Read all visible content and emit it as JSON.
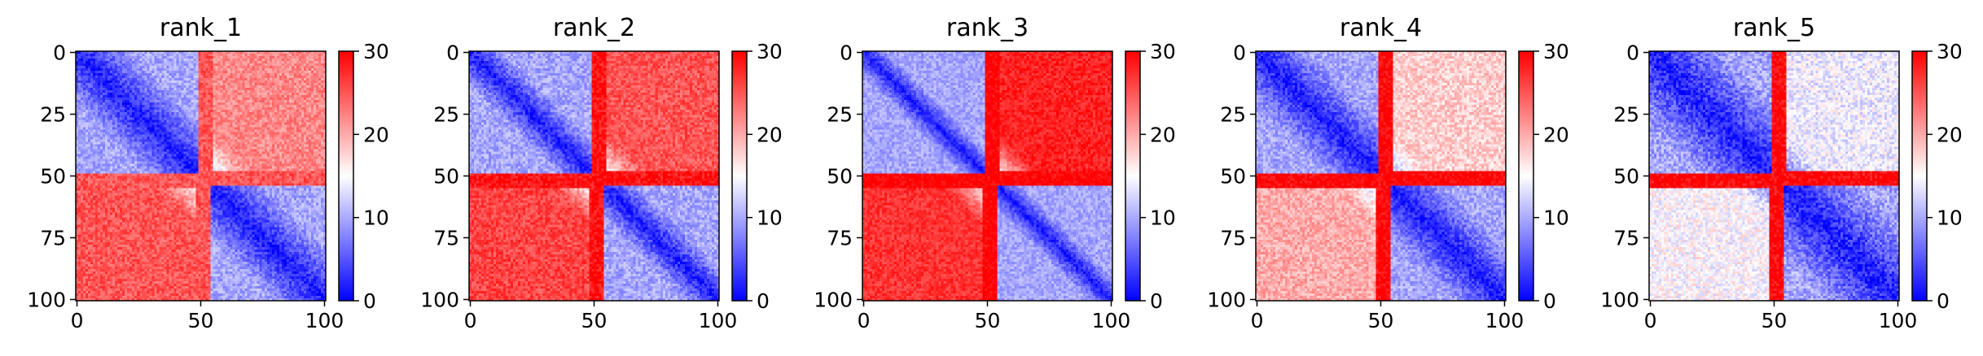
{
  "chart_data": [
    {
      "type": "heatmap",
      "title": "rank_1",
      "xlabel": "",
      "ylabel": "",
      "x_ticks": [
        0,
        50,
        100
      ],
      "y_ticks": [
        0,
        25,
        50,
        75,
        100
      ],
      "xlim": [
        0,
        101
      ],
      "ylim": [
        101,
        0
      ],
      "colorbar": {
        "vmin": 0,
        "vmax": 30,
        "ticks": [
          0,
          10,
          20,
          30
        ],
        "colormap": "bwr"
      },
      "pattern": {
        "boundary_low": 50,
        "boundary_high": 55,
        "diag_width": 22,
        "offdiag_top_right": 22,
        "offdiag_bottom_left": 25,
        "band_peak": 25,
        "noise": 2.5
      }
    },
    {
      "type": "heatmap",
      "title": "rank_2",
      "xlabel": "",
      "ylabel": "",
      "x_ticks": [
        0,
        50,
        100
      ],
      "y_ticks": [
        0,
        25,
        50,
        75,
        100
      ],
      "xlim": [
        0,
        101
      ],
      "ylim": [
        101,
        0
      ],
      "colorbar": {
        "vmin": 0,
        "vmax": 30,
        "ticks": [
          0,
          10,
          20,
          30
        ],
        "colormap": "bwr"
      },
      "pattern": {
        "boundary_low": 50,
        "boundary_high": 55,
        "diag_width": 14,
        "offdiag_top_right": 25,
        "offdiag_bottom_left": 26,
        "band_peak": 29,
        "noise": 2.5
      }
    },
    {
      "type": "heatmap",
      "title": "rank_3",
      "xlabel": "",
      "ylabel": "",
      "x_ticks": [
        0,
        50,
        100
      ],
      "y_ticks": [
        0,
        25,
        50,
        75,
        100
      ],
      "xlim": [
        0,
        101
      ],
      "ylim": [
        101,
        0
      ],
      "colorbar": {
        "vmin": 0,
        "vmax": 30,
        "ticks": [
          0,
          10,
          20,
          30
        ],
        "colormap": "bwr"
      },
      "pattern": {
        "boundary_low": 50,
        "boundary_high": 55,
        "diag_width": 10,
        "offdiag_top_right": 28,
        "offdiag_bottom_left": 27,
        "band_peak": 30,
        "noise": 2.0
      }
    },
    {
      "type": "heatmap",
      "title": "rank_4",
      "xlabel": "",
      "ylabel": "",
      "x_ticks": [
        0,
        50,
        100
      ],
      "y_ticks": [
        0,
        25,
        50,
        75,
        100
      ],
      "xlim": [
        0,
        101
      ],
      "ylim": [
        101,
        0
      ],
      "colorbar": {
        "vmin": 0,
        "vmax": 30,
        "ticks": [
          0,
          10,
          20,
          30
        ],
        "colormap": "bwr"
      },
      "pattern": {
        "boundary_low": 50,
        "boundary_high": 55,
        "diag_width": 22,
        "offdiag_top_right": 18,
        "offdiag_bottom_left": 20,
        "band_peak": 30,
        "noise": 2.5
      }
    },
    {
      "type": "heatmap",
      "title": "rank_5",
      "xlabel": "",
      "ylabel": "",
      "x_ticks": [
        0,
        50,
        100
      ],
      "y_ticks": [
        0,
        25,
        50,
        75,
        100
      ],
      "xlim": [
        0,
        101
      ],
      "ylim": [
        101,
        0
      ],
      "colorbar": {
        "vmin": 0,
        "vmax": 30,
        "ticks": [
          0,
          10,
          20,
          30
        ],
        "colormap": "bwr"
      },
      "pattern": {
        "boundary_low": 50,
        "boundary_high": 55,
        "diag_width": 30,
        "offdiag_top_right": 14,
        "offdiag_bottom_left": 15,
        "band_peak": 30,
        "noise": 3.0
      }
    }
  ]
}
